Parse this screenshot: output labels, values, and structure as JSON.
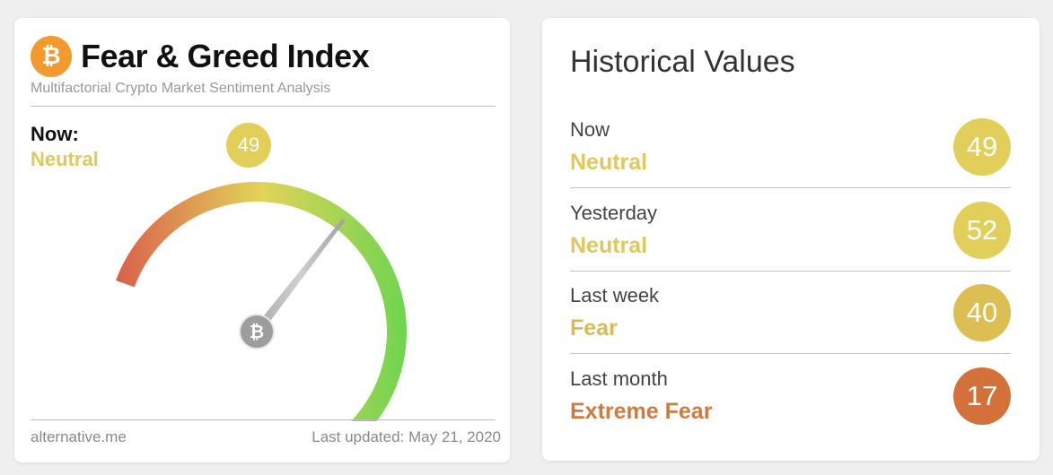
{
  "gauge_card": {
    "title": "Fear & Greed Index",
    "subtitle": "Multifactorial Crypto Market Sentiment Analysis",
    "logo_icon": "bitcoin-icon",
    "logo_glyph": "₿",
    "now_label": "Now:",
    "now_classification": "Neutral",
    "now_value": "49",
    "gauge_value": 49,
    "gauge_min": 0,
    "gauge_max": 100,
    "footer_source": "alternative.me",
    "footer_updated": "Last updated: May 21, 2020",
    "colors": {
      "fear": "#d9604a",
      "mid": "#e2d35a",
      "greed": "#6fd54f",
      "neutral_badge": "#e2cf59",
      "needle": "#b8b8b8"
    }
  },
  "history": {
    "title": "Historical Values",
    "rows": [
      {
        "label": "Now",
        "classification": "Neutral",
        "value": "49",
        "badge_color": "#e2cf59",
        "text_color": "#e0c85a"
      },
      {
        "label": "Yesterday",
        "classification": "Neutral",
        "value": "52",
        "badge_color": "#e2cf59",
        "text_color": "#e0c85a"
      },
      {
        "label": "Last week",
        "classification": "Fear",
        "value": "40",
        "badge_color": "#dcbe52",
        "text_color": "#d8bb53"
      },
      {
        "label": "Last month",
        "classification": "Extreme Fear",
        "value": "17",
        "badge_color": "#d4703a",
        "text_color": "#d07a3e"
      }
    ]
  }
}
